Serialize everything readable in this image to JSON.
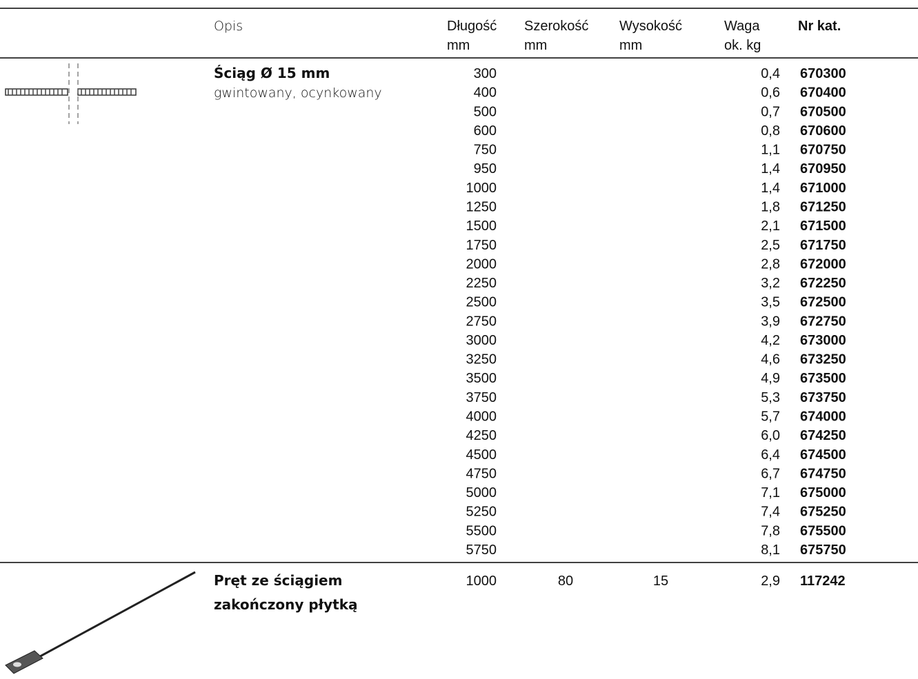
{
  "header": {
    "columns": [
      [
        "Opis"
      ],
      [
        "Długość",
        "mm"
      ],
      [
        "Szerokość",
        "mm"
      ],
      [
        "Wysokość",
        "mm"
      ],
      [
        "Waga",
        "ok.  kg"
      ],
      [
        "Nr kat."
      ]
    ]
  },
  "products": [
    {
      "name": [
        "Ściąg Ø 15 mm"
      ],
      "description": "gwintowany, ocynkowany",
      "rows": [
        {
          "length": "300",
          "weight": "0,4",
          "code": "670300"
        },
        {
          "length": "400",
          "weight": "0,6",
          "code": "670400"
        },
        {
          "length": "500",
          "weight": "0,7",
          "code": "670500"
        },
        {
          "length": "600",
          "weight": "0,8",
          "code": "670600"
        },
        {
          "length": "750",
          "weight": "1,1",
          "code": "670750"
        },
        {
          "length": "950",
          "weight": "1,4",
          "code": "670950"
        },
        {
          "length": "1000",
          "weight": "1,4",
          "code": "671000"
        },
        {
          "length": "1250",
          "weight": "1,8",
          "code": "671250"
        },
        {
          "length": "1500",
          "weight": "2,1",
          "code": "671500"
        },
        {
          "length": "1750",
          "weight": "2,5",
          "code": "671750"
        },
        {
          "length": "2000",
          "weight": "2,8",
          "code": "672000"
        },
        {
          "length": "2250",
          "weight": "3,2",
          "code": "672250"
        },
        {
          "length": "2500",
          "weight": "3,5",
          "code": "672500"
        },
        {
          "length": "2750",
          "weight": "3,9",
          "code": "672750"
        },
        {
          "length": "3000",
          "weight": "4,2",
          "code": "673000"
        },
        {
          "length": "3250",
          "weight": "4,6",
          "code": "673250"
        },
        {
          "length": "3500",
          "weight": "4,9",
          "code": "673500"
        },
        {
          "length": "3750",
          "weight": "5,3",
          "code": "673750"
        },
        {
          "length": "4000",
          "weight": "5,7",
          "code": "674000"
        },
        {
          "length": "4250",
          "weight": "6,0",
          "code": "674250"
        },
        {
          "length": "4500",
          "weight": "6,4",
          "code": "674500"
        },
        {
          "length": "4750",
          "weight": "6,7",
          "code": "674750"
        },
        {
          "length": "5000",
          "weight": "7,1",
          "code": "675000"
        },
        {
          "length": "5250",
          "weight": "7,4",
          "code": "675250"
        },
        {
          "length": "5500",
          "weight": "7,8",
          "code": "675500"
        },
        {
          "length": "5750",
          "weight": "8,1",
          "code": "675750"
        }
      ]
    },
    {
      "name": [
        "Pręt ze ściągiem",
        "zakończony płytką"
      ],
      "rows": [
        {
          "length": "1000",
          "width": "80",
          "height": "15",
          "weight": "2,9",
          "code": "117242"
        }
      ]
    }
  ]
}
